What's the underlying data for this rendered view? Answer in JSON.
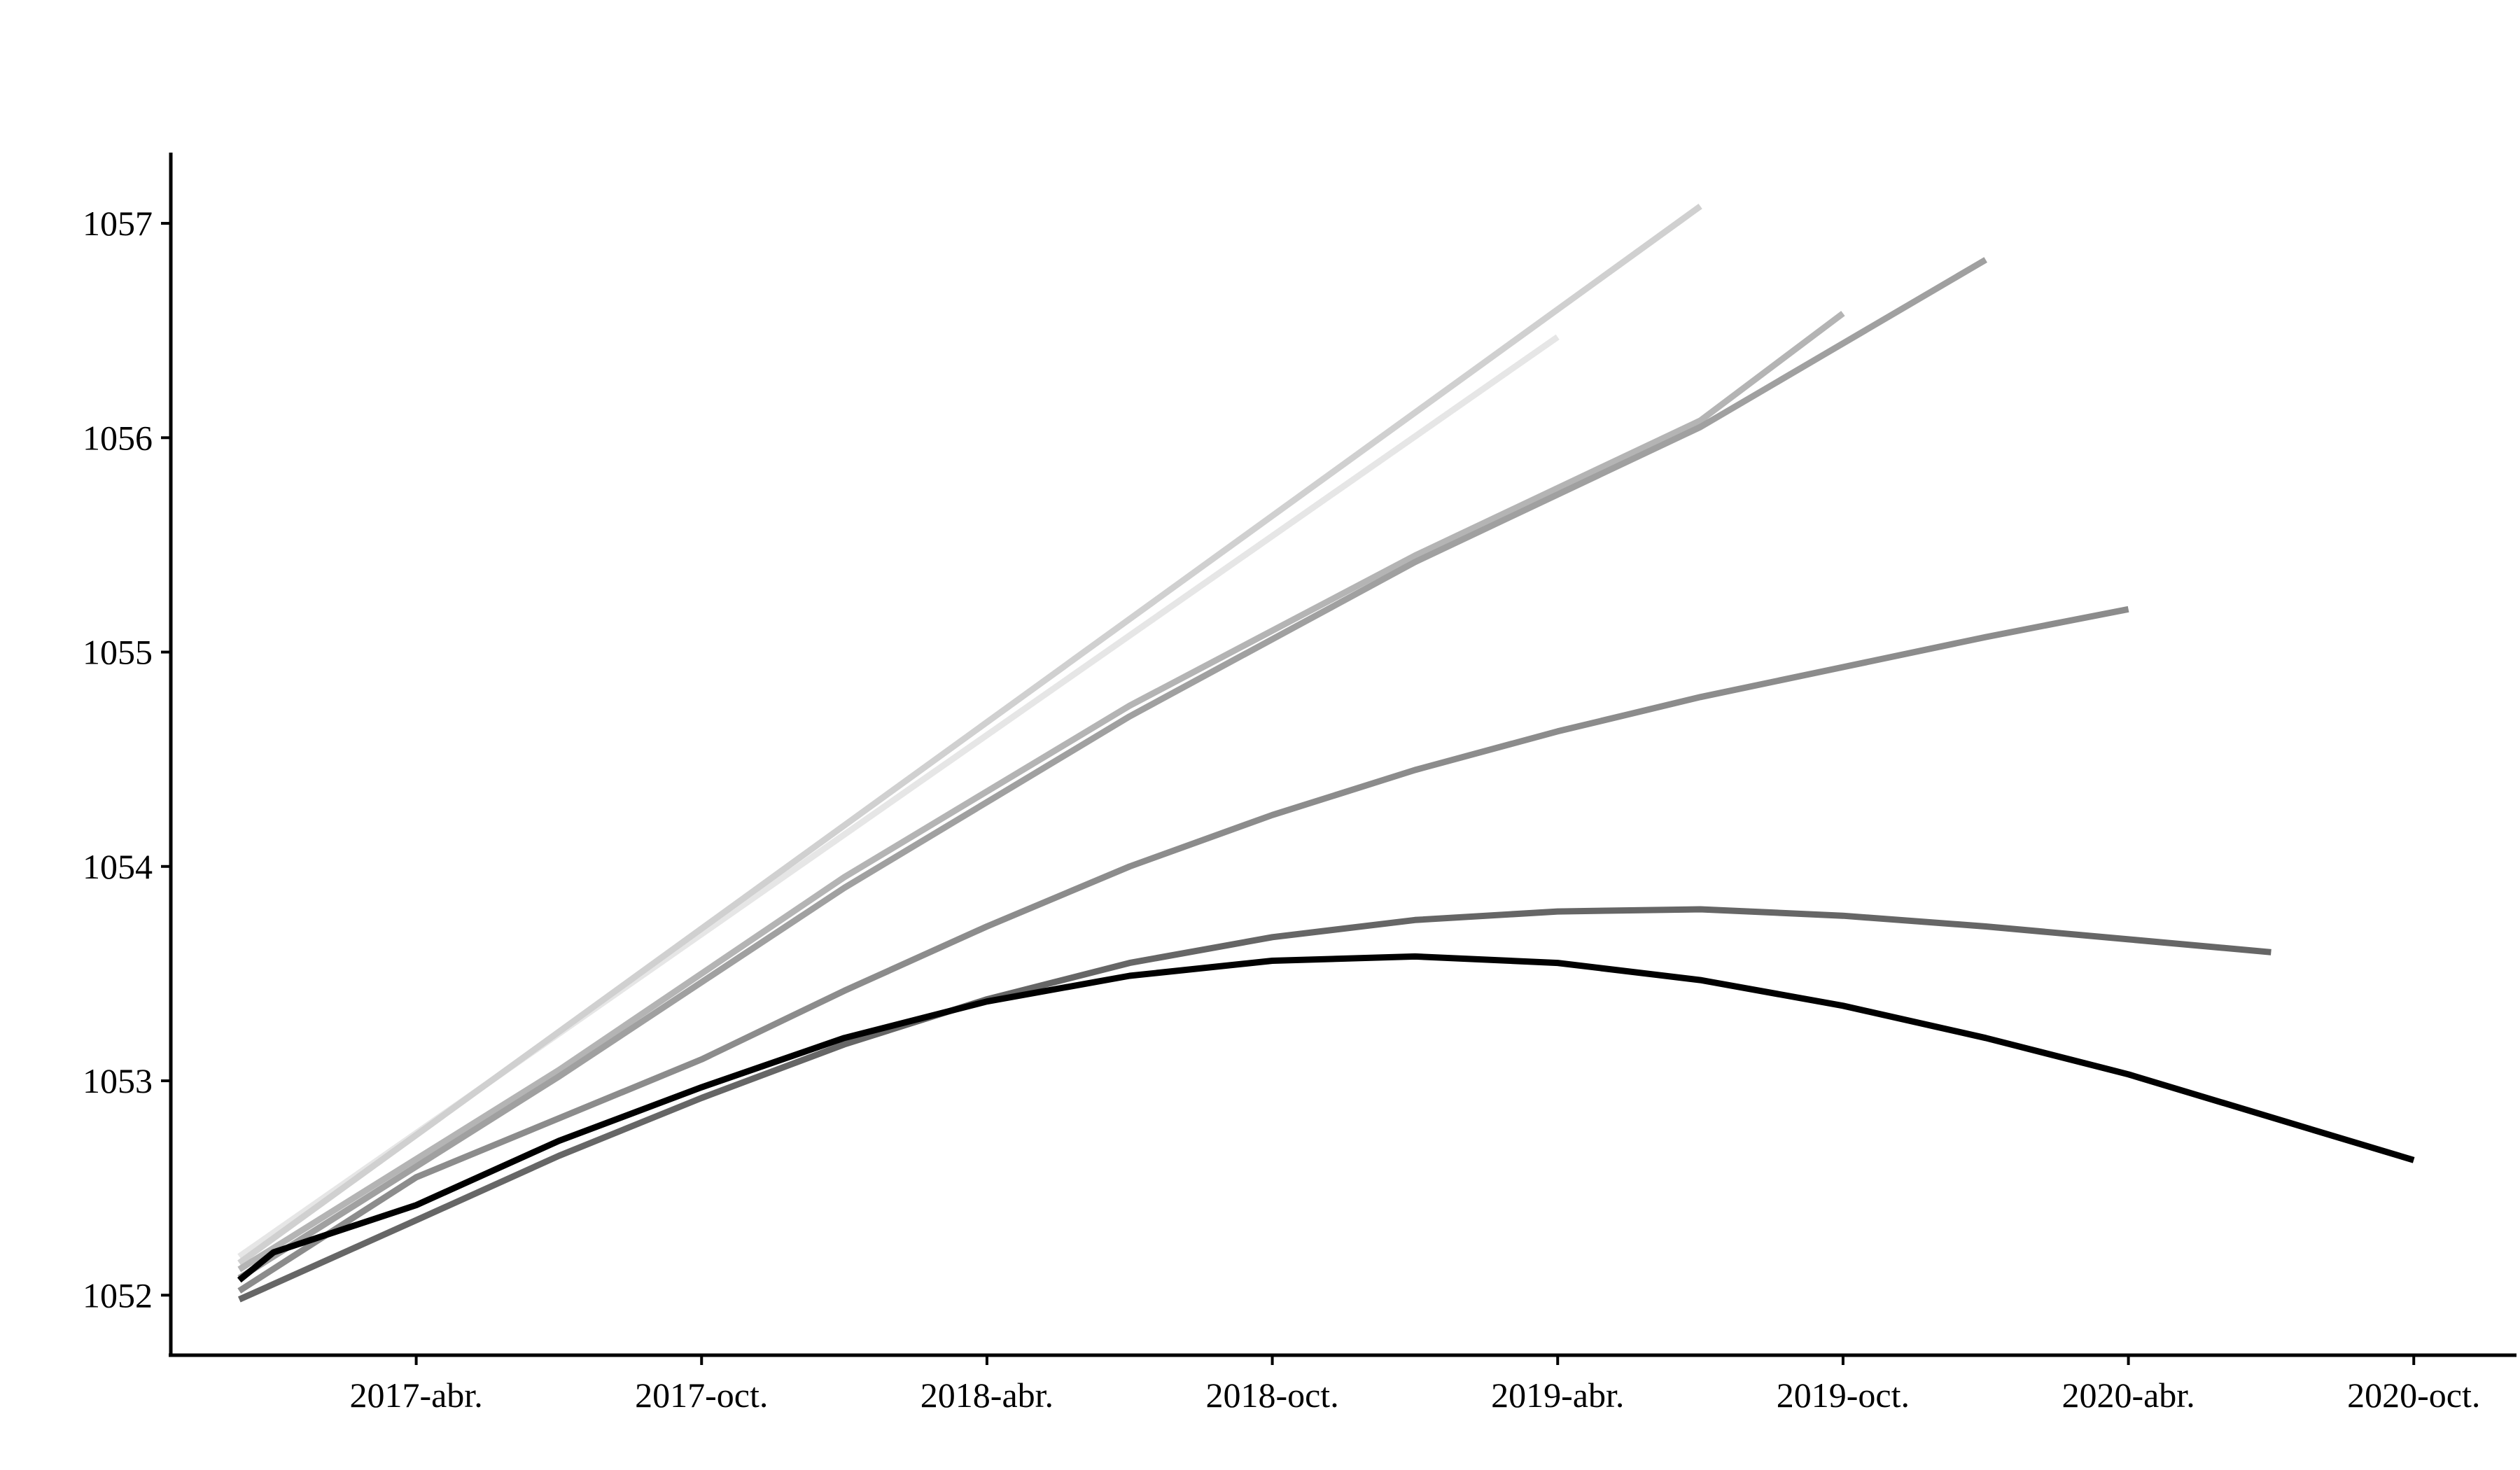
{
  "chart_data": {
    "type": "line",
    "title": "",
    "xlabel": "",
    "ylabel": "",
    "x_ticks": [
      {
        "label": "2017-abr.",
        "x": 2017.25
      },
      {
        "label": "2017-oct.",
        "x": 2017.75
      },
      {
        "label": "2018-abr.",
        "x": 2018.25
      },
      {
        "label": "2018-oct.",
        "x": 2018.75
      },
      {
        "label": "2019-abr.",
        "x": 2019.25
      },
      {
        "label": "2019-oct.",
        "x": 2019.75
      },
      {
        "label": "2020-abr.",
        "x": 2020.25
      },
      {
        "label": "2020-oct.",
        "x": 2020.75
      }
    ],
    "y_ticks": [
      1052,
      1053,
      1054,
      1055,
      1056,
      1057
    ],
    "xlim": [
      2016.82,
      2020.93
    ],
    "ylim": [
      1051.72,
      1057.33
    ],
    "grid": false,
    "legend": "none",
    "series": [
      {
        "color": "#e6e6e6",
        "points": [
          [
            2016.94,
            1052.18
          ],
          [
            2019.25,
            1056.47
          ]
        ]
      },
      {
        "color": "#d0d0d0",
        "points": [
          [
            2016.94,
            1052.15
          ],
          [
            2019.5,
            1057.08
          ]
        ]
      },
      {
        "color": "#b4b4b4",
        "points": [
          [
            2016.94,
            1052.12
          ],
          [
            2017.5,
            1053.05
          ],
          [
            2018.0,
            1053.95
          ],
          [
            2018.5,
            1054.75
          ],
          [
            2019.0,
            1055.45
          ],
          [
            2019.5,
            1056.08
          ],
          [
            2019.75,
            1056.58
          ]
        ]
      },
      {
        "color": "#a0a0a0",
        "points": [
          [
            2016.94,
            1052.08
          ],
          [
            2017.5,
            1053.02
          ],
          [
            2018.0,
            1053.9
          ],
          [
            2018.5,
            1054.7
          ],
          [
            2019.0,
            1055.42
          ],
          [
            2019.5,
            1056.05
          ],
          [
            2020.0,
            1056.83
          ]
        ]
      },
      {
        "color": "#8c8c8c",
        "points": [
          [
            2016.94,
            1052.02
          ],
          [
            2017.25,
            1052.55
          ],
          [
            2017.75,
            1053.1
          ],
          [
            2018.0,
            1053.42
          ],
          [
            2018.25,
            1053.72
          ],
          [
            2018.5,
            1054.0
          ],
          [
            2018.75,
            1054.24
          ],
          [
            2019.0,
            1054.45
          ],
          [
            2019.25,
            1054.63
          ],
          [
            2019.5,
            1054.79
          ],
          [
            2019.75,
            1054.93
          ],
          [
            2020.0,
            1055.07
          ],
          [
            2020.25,
            1055.2
          ]
        ]
      },
      {
        "color": "#666666",
        "points": [
          [
            2016.94,
            1051.98
          ],
          [
            2017.25,
            1052.35
          ],
          [
            2017.5,
            1052.65
          ],
          [
            2017.75,
            1052.92
          ],
          [
            2018.0,
            1053.17
          ],
          [
            2018.25,
            1053.38
          ],
          [
            2018.5,
            1053.55
          ],
          [
            2018.75,
            1053.67
          ],
          [
            2019.0,
            1053.75
          ],
          [
            2019.25,
            1053.79
          ],
          [
            2019.5,
            1053.8
          ],
          [
            2019.75,
            1053.77
          ],
          [
            2020.0,
            1053.72
          ],
          [
            2020.25,
            1053.66
          ],
          [
            2020.5,
            1053.6
          ]
        ]
      },
      {
        "color": "#000000",
        "points": [
          [
            2016.94,
            1052.07
          ],
          [
            2017.0,
            1052.2
          ],
          [
            2017.25,
            1052.42
          ],
          [
            2017.5,
            1052.72
          ],
          [
            2017.75,
            1052.97
          ],
          [
            2018.0,
            1053.2
          ],
          [
            2018.25,
            1053.37
          ],
          [
            2018.5,
            1053.49
          ],
          [
            2018.75,
            1053.56
          ],
          [
            2019.0,
            1053.58
          ],
          [
            2019.25,
            1053.55
          ],
          [
            2019.5,
            1053.47
          ],
          [
            2019.75,
            1053.35
          ],
          [
            2020.0,
            1053.2
          ],
          [
            2020.25,
            1053.03
          ],
          [
            2020.5,
            1052.83
          ],
          [
            2020.75,
            1052.63
          ]
        ]
      }
    ]
  }
}
